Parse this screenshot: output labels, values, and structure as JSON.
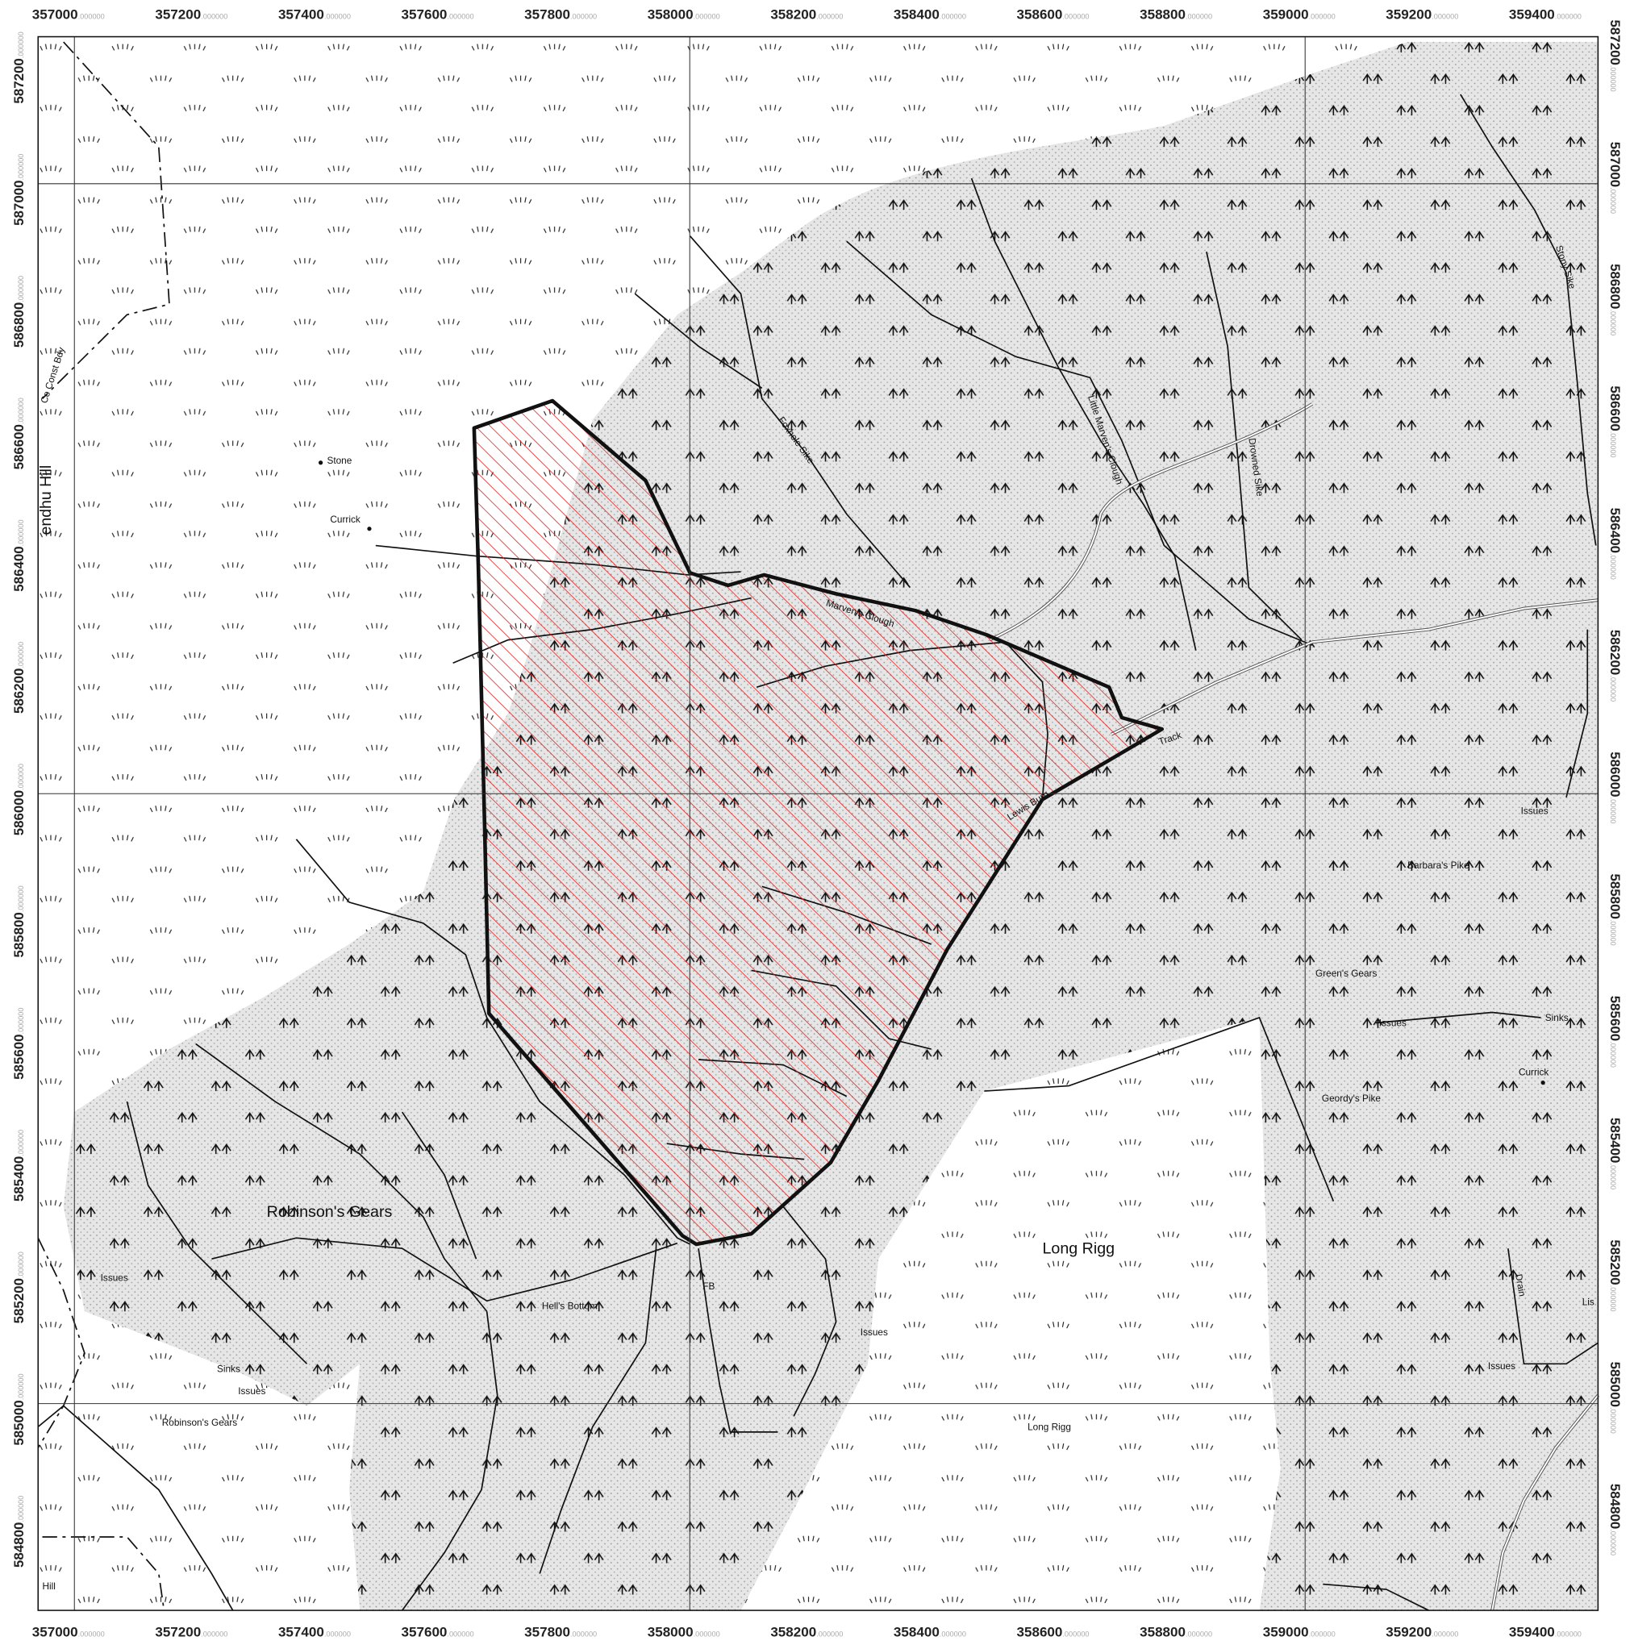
{
  "map": {
    "xlim": [
      356941,
      359476
    ],
    "ylim": [
      584661,
      587241
    ],
    "xticks": [
      357000,
      357200,
      357400,
      357600,
      357800,
      358000,
      358200,
      358400,
      358600,
      358800,
      359000,
      359200,
      359400
    ],
    "yticks": [
      584800,
      585000,
      585200,
      585400,
      585600,
      585800,
      586000,
      586200,
      586400,
      586600,
      586800,
      587000,
      587200
    ],
    "tick_suffix": ".000000",
    "gridlines_x": [
      357000,
      358000,
      359000
    ],
    "gridlines_y": [
      585000,
      586000,
      587000
    ],
    "labels": [
      "Stone",
      "Currick",
      "Foxhole Sike",
      "Little Marven's Clough",
      "Drowned Sike",
      "Stony Sike",
      "Marven's Clough",
      "Track",
      "Lewis Burn",
      "Issues",
      "Barbara's Pike",
      "Green's Gears",
      "Issues",
      "Sinks",
      "Currick",
      "Geordy's Pike",
      "Robinson's Gears",
      "Issues",
      "Hell's Bottom",
      "FB",
      "Issues",
      "Long Rigg",
      "Sinks",
      "Issues",
      "Robinson's Gears",
      "Long Rigg",
      "Issues",
      "Drain",
      "Lis",
      "Hill",
      "endhu Hill",
      "Co Const Bdy"
    ]
  }
}
